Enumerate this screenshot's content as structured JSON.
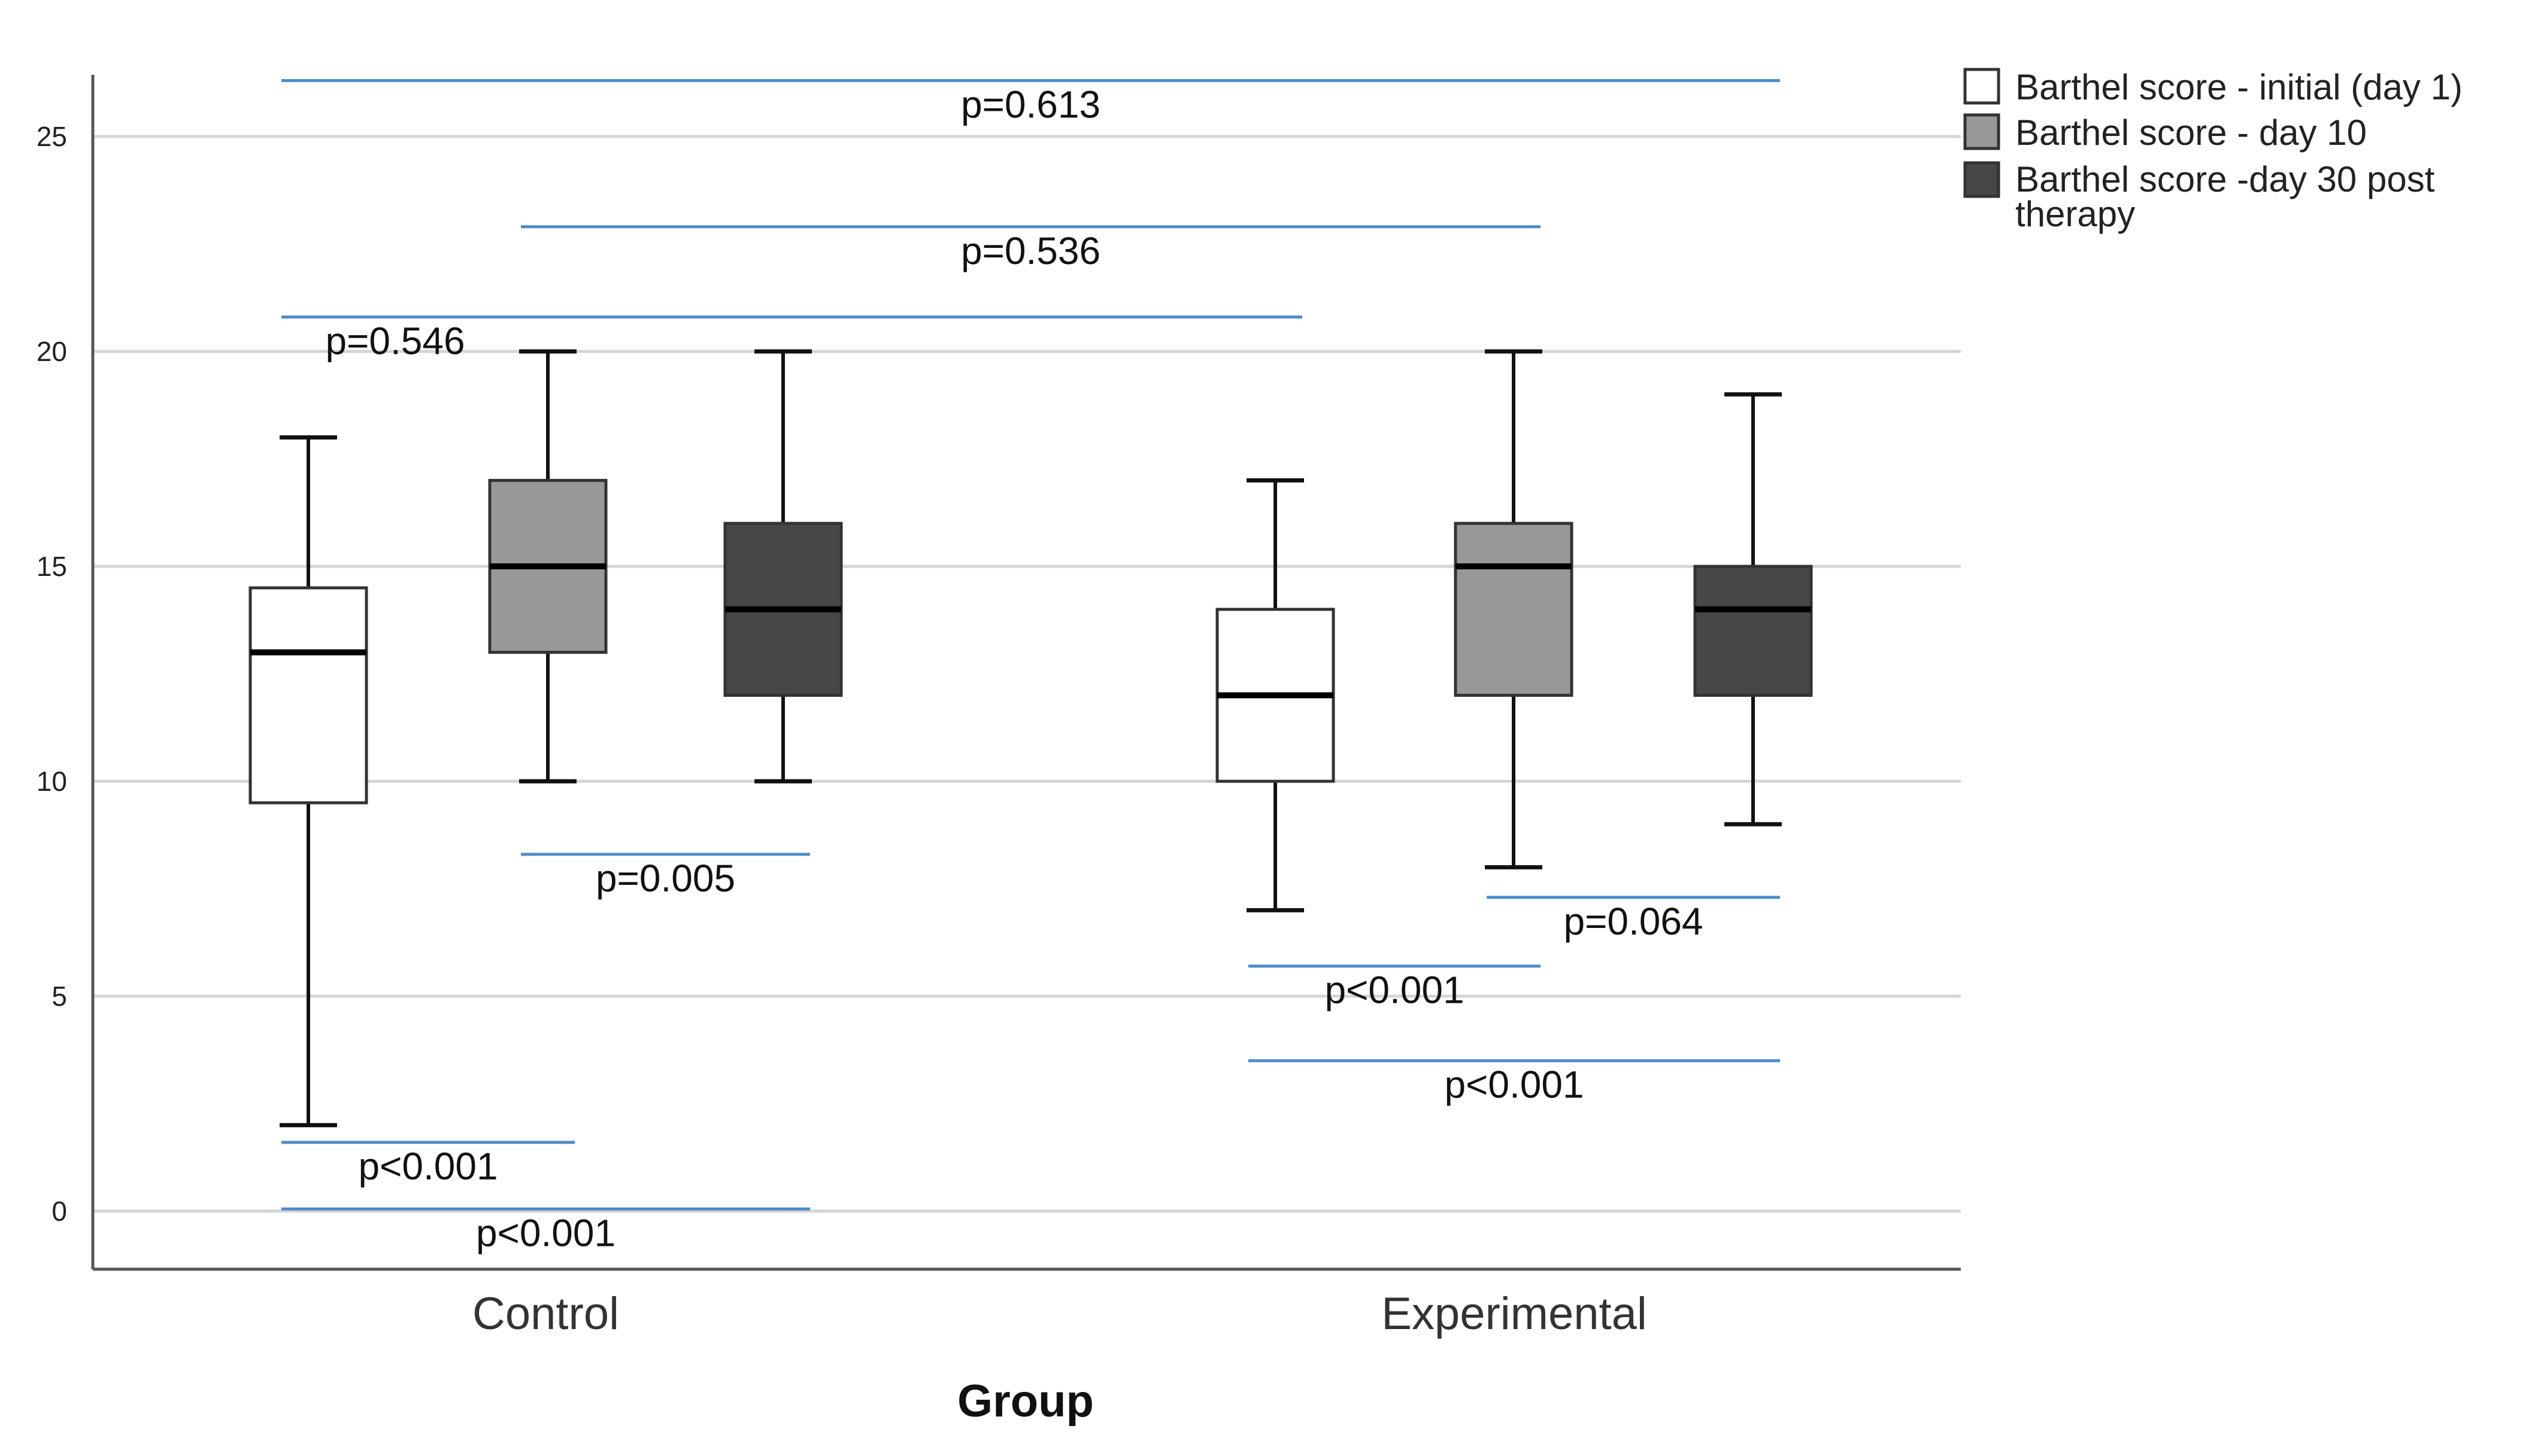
{
  "chart_data": {
    "type": "boxplot",
    "xlabel": "Group",
    "ylabel": "",
    "ylim": [
      0,
      25
    ],
    "yticks": [
      0,
      5,
      10,
      15,
      20,
      25
    ],
    "grid": true,
    "legend_position": "top-right",
    "categories": [
      "Control",
      "Experimental"
    ],
    "series": [
      {
        "name": "Barthel score - initial (day 1)",
        "color": "#ffffff",
        "boxes": [
          {
            "min": 2,
            "q1": 9.5,
            "median": 13,
            "q3": 14.5,
            "max": 18
          },
          {
            "min": 7,
            "q1": 10,
            "median": 12,
            "q3": 14,
            "max": 17
          }
        ]
      },
      {
        "name": "Barthel score - day 10",
        "color": "#989898",
        "boxes": [
          {
            "min": 10,
            "q1": 13,
            "median": 15,
            "q3": 17,
            "max": 20
          },
          {
            "min": 8,
            "q1": 12,
            "median": 15,
            "q3": 16,
            "max": 20
          }
        ]
      },
      {
        "name": "Barthel score -day 30 post therapy",
        "color": "#474747",
        "boxes": [
          {
            "min": 10,
            "q1": 12,
            "median": 14,
            "q3": 16,
            "max": 20
          },
          {
            "min": 9,
            "q1": 12,
            "median": 14,
            "q3": 15,
            "max": 19
          }
        ]
      }
    ],
    "annotations": [
      {
        "text": "p=0.613",
        "from": [
          0,
          0
        ],
        "to": [
          1,
          2
        ],
        "y": 26.3
      },
      {
        "text": "p=0.536",
        "from": [
          0,
          1
        ],
        "to": [
          1,
          1
        ],
        "y": 22.9
      },
      {
        "text": "p=0.546",
        "from": [
          0,
          0
        ],
        "to": [
          1,
          0
        ],
        "y": 20.8
      },
      {
        "text": "p=0.005",
        "from": [
          0,
          1
        ],
        "to": [
          0,
          2
        ],
        "y": 8.3
      },
      {
        "text": "p=0.064",
        "from": [
          1,
          1
        ],
        "to": [
          1,
          2
        ],
        "y": 7.3
      },
      {
        "text": "p<0.001",
        "from": [
          1,
          0
        ],
        "to": [
          1,
          1
        ],
        "y": 5.7
      },
      {
        "text": "p<0.001",
        "from": [
          1,
          0
        ],
        "to": [
          1,
          2
        ],
        "y": 3.5
      },
      {
        "text": "p<0.001",
        "from": [
          0,
          0
        ],
        "to": [
          0,
          1
        ],
        "y": 1.6
      },
      {
        "text": "p<0.001",
        "from": [
          0,
          0
        ],
        "to": [
          0,
          2
        ],
        "y": 0.05
      }
    ]
  }
}
